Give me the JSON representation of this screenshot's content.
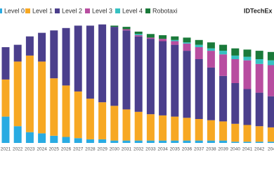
{
  "chart_data": {
    "type": "stacked_bar",
    "logo": "IDTechEx",
    "categories": [
      "2021",
      "2022",
      "2023",
      "2024",
      "2025",
      "2026",
      "2027",
      "2028",
      "2029",
      "2030",
      "2031",
      "2032",
      "2033",
      "2034",
      "2035",
      "2036",
      "2037",
      "2038",
      "2039",
      "2040",
      "2041",
      "2042",
      "204"
    ],
    "ylim": [
      0,
      100
    ],
    "series": [
      {
        "name": "Level 0",
        "color": "#29abe2",
        "values": [
          22,
          14,
          9,
          8,
          6,
          5,
          4,
          3,
          3,
          2,
          2,
          2,
          2,
          2,
          2,
          2,
          2,
          2,
          2,
          1,
          1,
          1,
          1
        ]
      },
      {
        "name": "Level 1",
        "color": "#f7a823",
        "values": [
          31,
          54,
          64,
          60,
          48,
          43,
          39,
          34,
          31,
          29,
          26,
          24,
          22,
          21,
          20,
          19,
          18,
          17,
          16,
          15,
          14,
          13,
          12
        ]
      },
      {
        "name": "Level 2",
        "color": "#4b3f8c",
        "values": [
          27,
          14,
          16,
          24,
          40,
          48,
          55,
          61,
          65,
          66,
          66,
          63,
          63,
          62,
          60,
          56,
          50,
          44,
          38,
          34,
          30,
          28,
          26
        ]
      },
      {
        "name": "Level 3",
        "color": "#b84da0",
        "values": [
          0,
          0,
          0,
          0,
          0,
          0,
          0,
          0,
          0,
          0,
          1,
          1,
          1,
          2,
          3,
          6,
          10,
          14,
          18,
          20,
          24,
          24,
          26
        ]
      },
      {
        "name": "Level 4",
        "color": "#36c1c1",
        "values": [
          0,
          0,
          0,
          0,
          0,
          0,
          0,
          0,
          0,
          0,
          0,
          1,
          0,
          0,
          1,
          1,
          2,
          2,
          3,
          3,
          3,
          4,
          4
        ]
      },
      {
        "name": "Robotaxi",
        "color": "#1a7a3a",
        "values": [
          0,
          0,
          0,
          0,
          0,
          0,
          0,
          0,
          0,
          1,
          2,
          2,
          3,
          3,
          3,
          4,
          4,
          5,
          5,
          6,
          6,
          7,
          7
        ]
      }
    ]
  }
}
